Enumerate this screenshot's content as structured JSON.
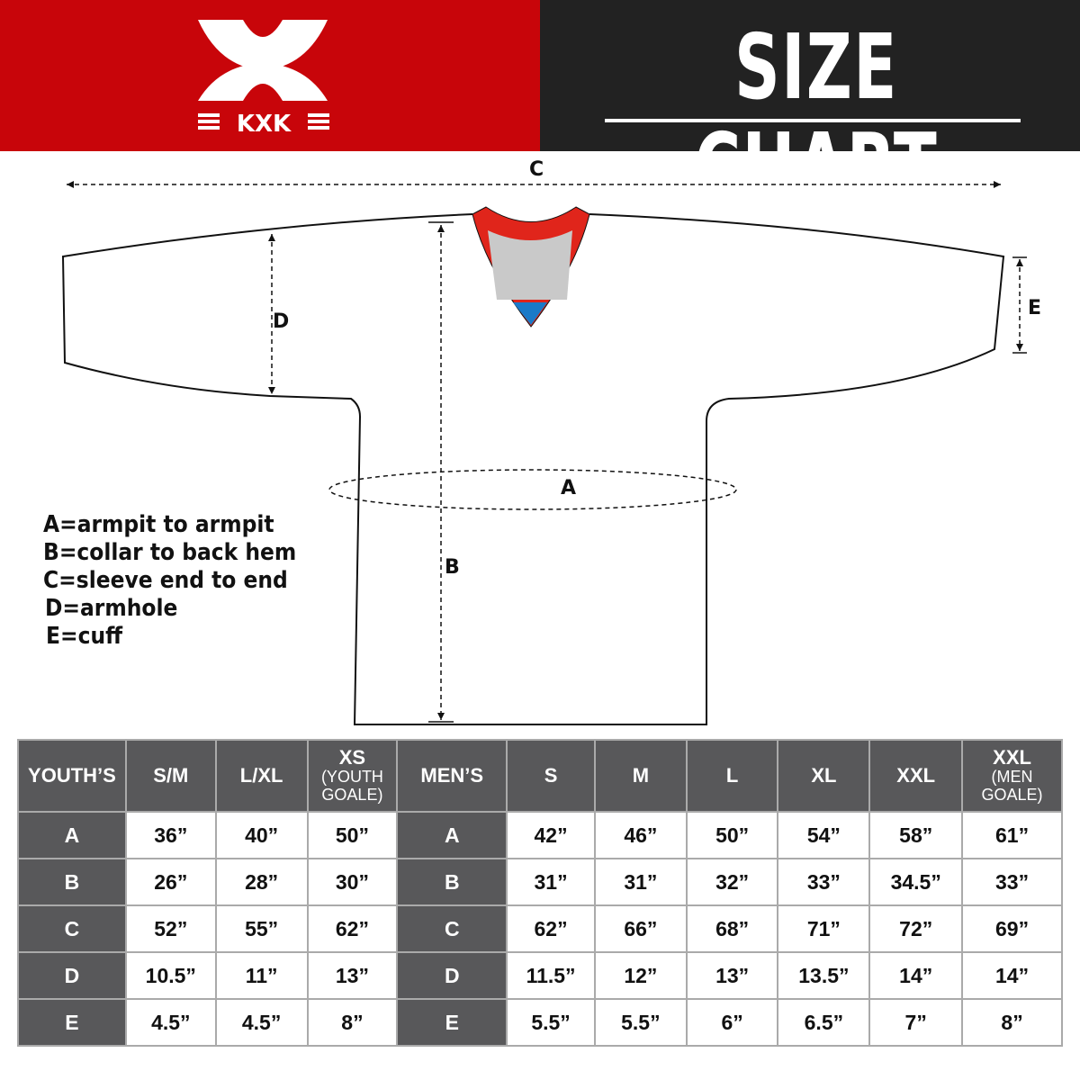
{
  "brand": {
    "logo_text": "KXK",
    "color": "#c8050a"
  },
  "title": "SIZE CHART",
  "diagram": {
    "labels": {
      "a": "A",
      "b": "B",
      "c": "C",
      "d": "D",
      "e": "E"
    }
  },
  "legend": [
    "A=armpit to armpit",
    "B=collar to back hem",
    "C=sleeve end to end",
    "D=armhole",
    "E=cuff"
  ],
  "table": {
    "headers": [
      {
        "main": "YOUTH’S"
      },
      {
        "main": "S/M"
      },
      {
        "main": "L/XL"
      },
      {
        "main": "XS",
        "sub": "(YOUTH GOALE)"
      },
      {
        "main": "MEN’S"
      },
      {
        "main": "S"
      },
      {
        "main": "M"
      },
      {
        "main": "L"
      },
      {
        "main": "XL"
      },
      {
        "main": "XXL"
      },
      {
        "main": "XXL",
        "sub": "(MEN GOALE)"
      }
    ],
    "rows": [
      [
        "A",
        "36”",
        "40”",
        "50”",
        "A",
        "42”",
        "46”",
        "50”",
        "54”",
        "58”",
        "61”"
      ],
      [
        "B",
        "26”",
        "28”",
        "30”",
        "B",
        "31”",
        "31”",
        "32”",
        "33”",
        "34.5”",
        "33”"
      ],
      [
        "C",
        "52”",
        "55”",
        "62”",
        "C",
        "62”",
        "66”",
        "68”",
        "71”",
        "72”",
        "69”"
      ],
      [
        "D",
        "10.5”",
        "11”",
        "13”",
        "D",
        "11.5”",
        "12”",
        "13”",
        "13.5”",
        "14”",
        "14”"
      ],
      [
        "E",
        "4.5”",
        "4.5”",
        "8”",
        "E",
        "5.5”",
        "5.5”",
        "6”",
        "6.5”",
        "7”",
        "8”"
      ]
    ]
  }
}
